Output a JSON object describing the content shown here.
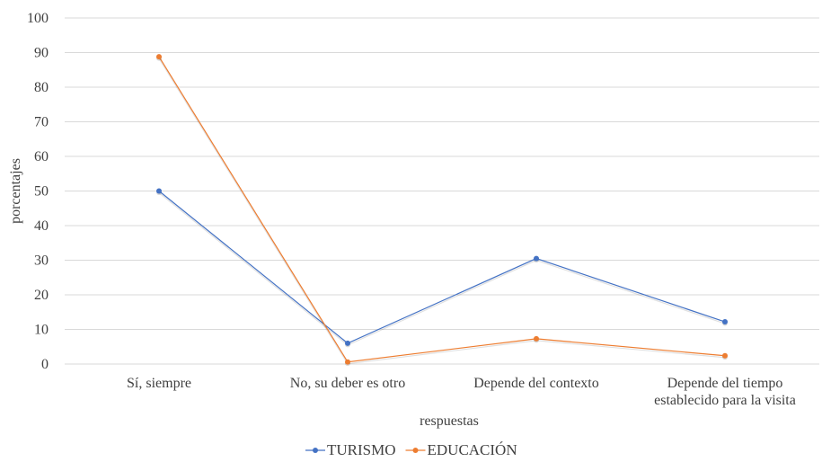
{
  "chart_data": {
    "type": "line",
    "categories": [
      [
        "Sí, siempre"
      ],
      [
        "No, su deber es otro"
      ],
      [
        "Depende del contexto"
      ],
      [
        "Depende del tiempo",
        "establecido para la visita"
      ]
    ],
    "series": [
      {
        "name": "TURISMO",
        "color": "#4472c4",
        "values": [
          50,
          6,
          30.5,
          12.2
        ]
      },
      {
        "name": "EDUCACIÓN",
        "color": "#ed7d31",
        "values": [
          88.8,
          0.6,
          7.3,
          2.4
        ]
      }
    ],
    "xlabel": "respuestas",
    "ylabel": "porcentajes",
    "ylim": [
      0,
      100
    ],
    "yticks": [
      "0",
      "10",
      "20",
      "30",
      "40",
      "50",
      "60",
      "70",
      "80",
      "90",
      "100"
    ],
    "grid": true,
    "legend_position": "bottom"
  }
}
